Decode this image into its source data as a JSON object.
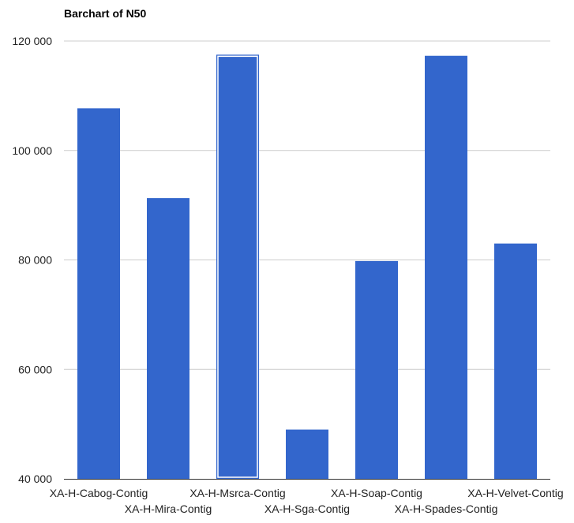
{
  "chart_data": {
    "type": "bar",
    "title": "Barchart of N50",
    "xlabel": "",
    "ylabel": "",
    "categories": [
      "XA-H-Cabog-Contig",
      "XA-H-Mira-Contig",
      "XA-H-Msrca-Contig",
      "XA-H-Sga-Contig",
      "XA-H-Soap-Contig",
      "XA-H-Spades-Contig",
      "XA-H-Velvet-Contig"
    ],
    "values": [
      107700,
      91300,
      117500,
      49000,
      79800,
      117300,
      83000
    ],
    "ylim": [
      40000,
      120000
    ],
    "yticks": [
      40000,
      60000,
      80000,
      100000,
      120000
    ],
    "ytick_labels": [
      "40 000",
      "60 000",
      "80 000",
      "100 000",
      "120 000"
    ],
    "grid": true,
    "legend": "none",
    "highlighted_index": 2,
    "colors": {
      "bar": "#3366cc",
      "grid": "#cccccc",
      "baseline": "#333333",
      "highlight_outline": "#ffffff"
    }
  }
}
